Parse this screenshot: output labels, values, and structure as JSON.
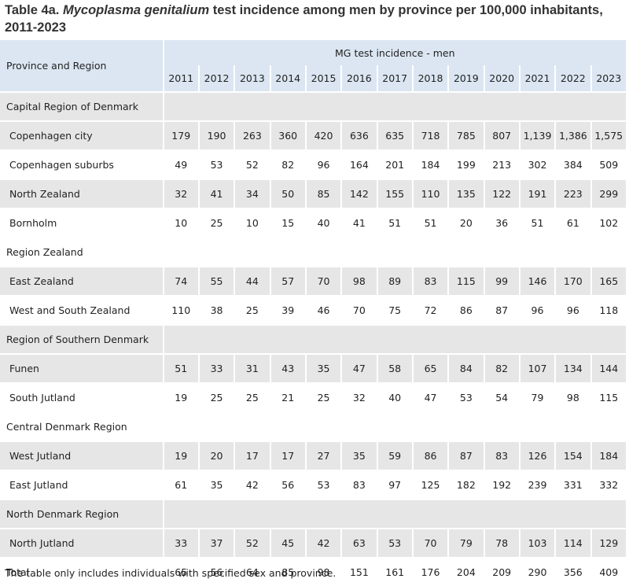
{
  "title": {
    "prefix": "Table 4a.",
    "italic": "Mycoplasma genitalium",
    "suffix": " test incidence among men by province per 100,000 inhabitants, 2011-2023"
  },
  "table": {
    "corner_label": "Province and Region",
    "group_label": "MG test incidence - men",
    "years": [
      "2011",
      "2012",
      "2013",
      "2014",
      "2015",
      "2016",
      "2017",
      "2018",
      "2019",
      "2020",
      "2021",
      "2022",
      "2023"
    ],
    "rows": [
      {
        "type": "region",
        "label": "Capital Region of Denmark",
        "shade": "grey"
      },
      {
        "type": "province",
        "label": "Copenhagen city",
        "shade": "grey",
        "values": [
          "179",
          "190",
          "263",
          "360",
          "420",
          "636",
          "635",
          "718",
          "785",
          "807",
          "1,139",
          "1,386",
          "1,575"
        ]
      },
      {
        "type": "province",
        "label": "Copenhagen suburbs",
        "shade": "white",
        "values": [
          "49",
          "53",
          "52",
          "82",
          "96",
          "164",
          "201",
          "184",
          "199",
          "213",
          "302",
          "384",
          "509"
        ]
      },
      {
        "type": "province",
        "label": "North Zealand",
        "shade": "grey",
        "values": [
          "32",
          "41",
          "34",
          "50",
          "85",
          "142",
          "155",
          "110",
          "135",
          "122",
          "191",
          "223",
          "299"
        ]
      },
      {
        "type": "province",
        "label": "Bornholm",
        "shade": "white",
        "values": [
          "10",
          "25",
          "10",
          "15",
          "40",
          "41",
          "51",
          "51",
          "20",
          "36",
          "51",
          "61",
          "102"
        ]
      },
      {
        "type": "region",
        "label": "Region Zealand",
        "shade": "white"
      },
      {
        "type": "province",
        "label": "East Zealand",
        "shade": "grey",
        "values": [
          "74",
          "55",
          "44",
          "57",
          "70",
          "98",
          "89",
          "83",
          "115",
          "99",
          "146",
          "170",
          "165"
        ]
      },
      {
        "type": "province",
        "label": "West and South Zealand",
        "shade": "white",
        "values": [
          "110",
          "38",
          "25",
          "39",
          "46",
          "70",
          "75",
          "72",
          "86",
          "87",
          "96",
          "96",
          "118"
        ]
      },
      {
        "type": "region",
        "label": "Region of Southern Denmark",
        "shade": "grey"
      },
      {
        "type": "province",
        "label": "Funen",
        "shade": "grey",
        "values": [
          "51",
          "33",
          "31",
          "43",
          "35",
          "47",
          "58",
          "65",
          "84",
          "82",
          "107",
          "134",
          "144"
        ]
      },
      {
        "type": "province",
        "label": "South Jutland",
        "shade": "white",
        "values": [
          "19",
          "25",
          "25",
          "21",
          "25",
          "32",
          "40",
          "47",
          "53",
          "54",
          "79",
          "98",
          "115"
        ]
      },
      {
        "type": "region",
        "label": "Central Denmark Region",
        "shade": "white"
      },
      {
        "type": "province",
        "label": "West Jutland",
        "shade": "grey",
        "values": [
          "19",
          "20",
          "17",
          "17",
          "27",
          "35",
          "59",
          "86",
          "87",
          "83",
          "126",
          "154",
          "184"
        ]
      },
      {
        "type": "province",
        "label": "East Jutland",
        "shade": "white",
        "values": [
          "61",
          "35",
          "42",
          "56",
          "53",
          "83",
          "97",
          "125",
          "182",
          "192",
          "239",
          "331",
          "332"
        ]
      },
      {
        "type": "region",
        "label": "North Denmark Region",
        "shade": "grey"
      },
      {
        "type": "province",
        "label": "North Jutland",
        "shade": "grey",
        "values": [
          "33",
          "37",
          "52",
          "45",
          "42",
          "63",
          "53",
          "70",
          "79",
          "78",
          "103",
          "114",
          "129"
        ]
      },
      {
        "type": "total",
        "label": "Total",
        "shade": "white",
        "values": [
          "65",
          "56",
          "64",
          "85",
          "98",
          "151",
          "161",
          "176",
          "204",
          "209",
          "290",
          "356",
          "409"
        ]
      }
    ]
  },
  "footnote": "The table only includes individuals with specified sex and province."
}
